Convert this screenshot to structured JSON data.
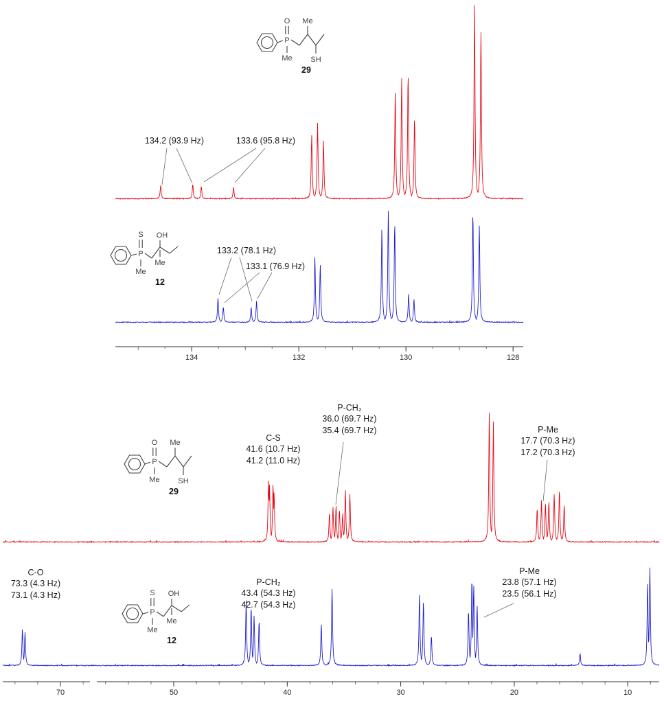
{
  "colors": {
    "red": "#e60613",
    "blue": "#1d1dcf",
    "axis": "#333333"
  },
  "structures": {
    "s29": {
      "number": "29",
      "oxygen": "O",
      "phosphorus": "P",
      "p_methyl": "Me",
      "chain_methyl": "Me",
      "thiol": "SH"
    },
    "s12": {
      "number": "12",
      "sulfur": "S",
      "phosphorus": "P",
      "p_methyl": "Me",
      "c_methyl": "Me",
      "hydroxyl": "OH"
    }
  },
  "top_panel": {
    "annotations": {
      "red_1": "134.2 (93.9 Hz)",
      "red_2": "133.6 (95.8 Hz)",
      "blue_1": "133.2 (78.1 Hz)",
      "blue_2": "133.1 (76.9 Hz)"
    }
  },
  "bottom_panel": {
    "annotations": {
      "red_cs": {
        "title": "C-S",
        "v1": "41.6 (10.7 Hz)",
        "v2": "41.2 (11.0 Hz)"
      },
      "red_pch2": {
        "title": "P-CH₂",
        "v1": "36.0 (69.7 Hz)",
        "v2": "35.4 (69.7 Hz)"
      },
      "red_pme": {
        "title": "P-Me",
        "v1": "17.7 (70.3 Hz)",
        "v2": "17.2 (70.3 Hz)"
      },
      "blue_co": {
        "title": "C-O",
        "v1": "73.3 (4.3 Hz)",
        "v2": "73.1 (4.3 Hz)"
      },
      "blue_pch2": {
        "title": "P-CH₂",
        "v1": "43.4 (54.3 Hz)",
        "v2": "42.7 (54.3 Hz)"
      },
      "blue_pme": {
        "title": "P-Me",
        "v1": "23.8 (57.1 Hz)",
        "v2": "23.5 (56.1 Hz)"
      }
    }
  },
  "chart_data": {
    "type": "line",
    "description": "13C NMR spectra comparison: compound 29 (red, thiol) vs compound 12 (blue, alcohol); top panel aromatic region, bottom panel aliphatic region",
    "x_unit": "ppm",
    "axes": {
      "aromatic": {
        "major_ticks": [
          134,
          132,
          130,
          128
        ],
        "range": [
          135.4,
          127.9
        ],
        "grid": false
      },
      "aliphatic": {
        "left_ticks": [
          70
        ],
        "main_ticks": [
          50,
          40,
          30,
          20,
          10
        ],
        "range": [
          75.5,
          7.5
        ],
        "axis_break": [
          66,
          57
        ],
        "grid": false
      }
    },
    "labeled_peaks": {
      "compound29_aromatic": [
        {
          "ppm": 134.2,
          "J_Hz": 93.9
        },
        {
          "ppm": 133.6,
          "J_Hz": 95.8
        }
      ],
      "compound12_aromatic": [
        {
          "ppm": 133.2,
          "J_Hz": 78.1
        },
        {
          "ppm": 133.1,
          "J_Hz": 76.9
        }
      ],
      "compound29_aliphatic": [
        {
          "assignment": "C-S",
          "ppm": 41.6,
          "J_Hz": 10.7
        },
        {
          "assignment": "C-S",
          "ppm": 41.2,
          "J_Hz": 11.0
        },
        {
          "assignment": "P-CH2",
          "ppm": 36.0,
          "J_Hz": 69.7
        },
        {
          "assignment": "P-CH2",
          "ppm": 35.4,
          "J_Hz": 69.7
        },
        {
          "assignment": "P-Me",
          "ppm": 17.7,
          "J_Hz": 70.3
        },
        {
          "assignment": "P-Me",
          "ppm": 17.2,
          "J_Hz": 70.3
        }
      ],
      "compound12_aliphatic": [
        {
          "assignment": "C-O",
          "ppm": 73.3,
          "J_Hz": 4.3
        },
        {
          "assignment": "C-O",
          "ppm": 73.1,
          "J_Hz": 4.3
        },
        {
          "assignment": "P-CH2",
          "ppm": 43.4,
          "J_Hz": 54.3
        },
        {
          "assignment": "P-CH2",
          "ppm": 42.7,
          "J_Hz": 54.3
        },
        {
          "assignment": "P-Me",
          "ppm": 23.8,
          "J_Hz": 57.1
        },
        {
          "assignment": "P-Me",
          "ppm": 23.5,
          "J_Hz": 56.1
        }
      ]
    },
    "spectra": [
      {
        "id": "aromatic-29",
        "compound": "29",
        "color_key": "red",
        "peaks_ppm_relheight": [
          [
            134.58,
            0.07
          ],
          [
            133.98,
            0.075
          ],
          [
            133.82,
            0.065
          ],
          [
            133.22,
            0.06
          ],
          [
            131.76,
            0.33
          ],
          [
            131.65,
            0.39
          ],
          [
            131.54,
            0.3
          ],
          [
            130.2,
            0.55
          ],
          [
            130.08,
            0.62
          ],
          [
            129.96,
            0.65
          ],
          [
            129.84,
            0.42
          ],
          [
            128.72,
            1.0
          ],
          [
            128.6,
            0.87
          ]
        ]
      },
      {
        "id": "aromatic-12",
        "compound": "12",
        "color_key": "blue",
        "peaks_ppm_relheight": [
          [
            133.51,
            0.22
          ],
          [
            133.41,
            0.14
          ],
          [
            132.89,
            0.14
          ],
          [
            132.79,
            0.19
          ],
          [
            131.7,
            0.59
          ],
          [
            131.6,
            0.52
          ],
          [
            130.45,
            0.84
          ],
          [
            130.33,
            1.0
          ],
          [
            130.21,
            0.9
          ],
          [
            129.95,
            0.26
          ],
          [
            129.85,
            0.21
          ],
          [
            128.75,
            0.99
          ],
          [
            128.63,
            0.87
          ]
        ]
      },
      {
        "id": "aliphatic-29",
        "compound": "29",
        "color_key": "red",
        "peaks_ppm_relheight": [
          [
            41.65,
            0.46
          ],
          [
            41.56,
            0.42
          ],
          [
            41.25,
            0.44
          ],
          [
            41.16,
            0.38
          ],
          [
            36.28,
            0.22
          ],
          [
            35.97,
            0.26
          ],
          [
            35.7,
            0.27
          ],
          [
            35.4,
            0.24
          ],
          [
            35.12,
            0.21
          ],
          [
            34.88,
            0.39
          ],
          [
            34.48,
            0.36
          ],
          [
            22.2,
            0.97
          ],
          [
            21.84,
            0.9
          ],
          [
            17.98,
            0.25
          ],
          [
            17.6,
            0.31
          ],
          [
            17.25,
            0.29
          ],
          [
            16.95,
            0.31
          ],
          [
            16.48,
            0.36
          ],
          [
            16.02,
            0.39
          ],
          [
            15.6,
            0.28
          ]
        ]
      },
      {
        "id": "aliphatic-12",
        "compound": "12",
        "color_key": "blue",
        "peaks_ppm_relheight": [
          [
            73.35,
            0.36
          ],
          [
            73.12,
            0.33
          ],
          [
            43.62,
            0.64
          ],
          [
            43.18,
            0.59
          ],
          [
            42.92,
            0.49
          ],
          [
            42.48,
            0.44
          ],
          [
            37.0,
            0.41
          ],
          [
            36.05,
            0.76
          ],
          [
            28.35,
            0.71
          ],
          [
            28.0,
            0.64
          ],
          [
            27.3,
            0.3
          ],
          [
            24.03,
            0.55
          ],
          [
            23.73,
            0.87
          ],
          [
            23.57,
            0.8
          ],
          [
            23.27,
            0.6
          ],
          [
            14.2,
            0.12
          ],
          [
            8.25,
            0.82
          ],
          [
            8.05,
            0.97
          ]
        ]
      }
    ]
  }
}
